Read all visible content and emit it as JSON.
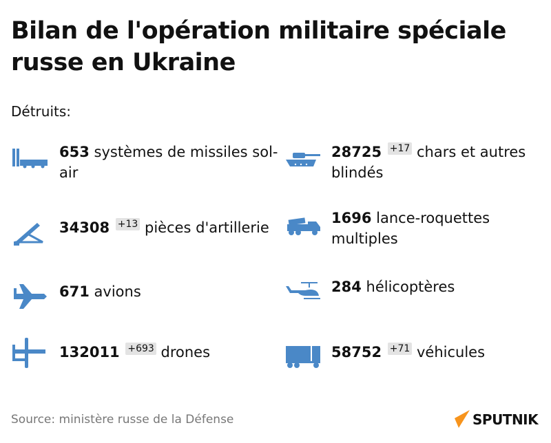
{
  "title": "Bilan de l'opération militaire spéciale russe en Ukraine",
  "subtitle": "Détruits:",
  "items": [
    {
      "number": "653",
      "delta": null,
      "label": "systèmes de missiles sol-air",
      "icon": "missile-launcher-icon"
    },
    {
      "number": "28725",
      "delta": "+17",
      "label": "chars et autres blindés",
      "icon": "tank-icon"
    },
    {
      "number": "34308",
      "delta": "+13",
      "label": "pièces d'artillerie",
      "icon": "artillery-icon"
    },
    {
      "number": "1696",
      "delta": null,
      "label": "lance-roquettes multiples",
      "icon": "rocket-launcher-truck-icon"
    },
    {
      "number": "671",
      "delta": null,
      "label": "avions",
      "icon": "airplane-icon"
    },
    {
      "number": "284",
      "delta": null,
      "label": "hélicoptères",
      "icon": "helicopter-icon"
    },
    {
      "number": "132011",
      "delta": "+693",
      "label": "drones",
      "icon": "drone-icon"
    },
    {
      "number": "58752",
      "delta": "+71",
      "label": "véhicules",
      "icon": "truck-icon"
    }
  ],
  "source": "Source: ministère russe de la Défense",
  "logo": "SPUTNIK",
  "colors": {
    "icon": "#4a88c7",
    "logo_accent": "#f7941d"
  }
}
